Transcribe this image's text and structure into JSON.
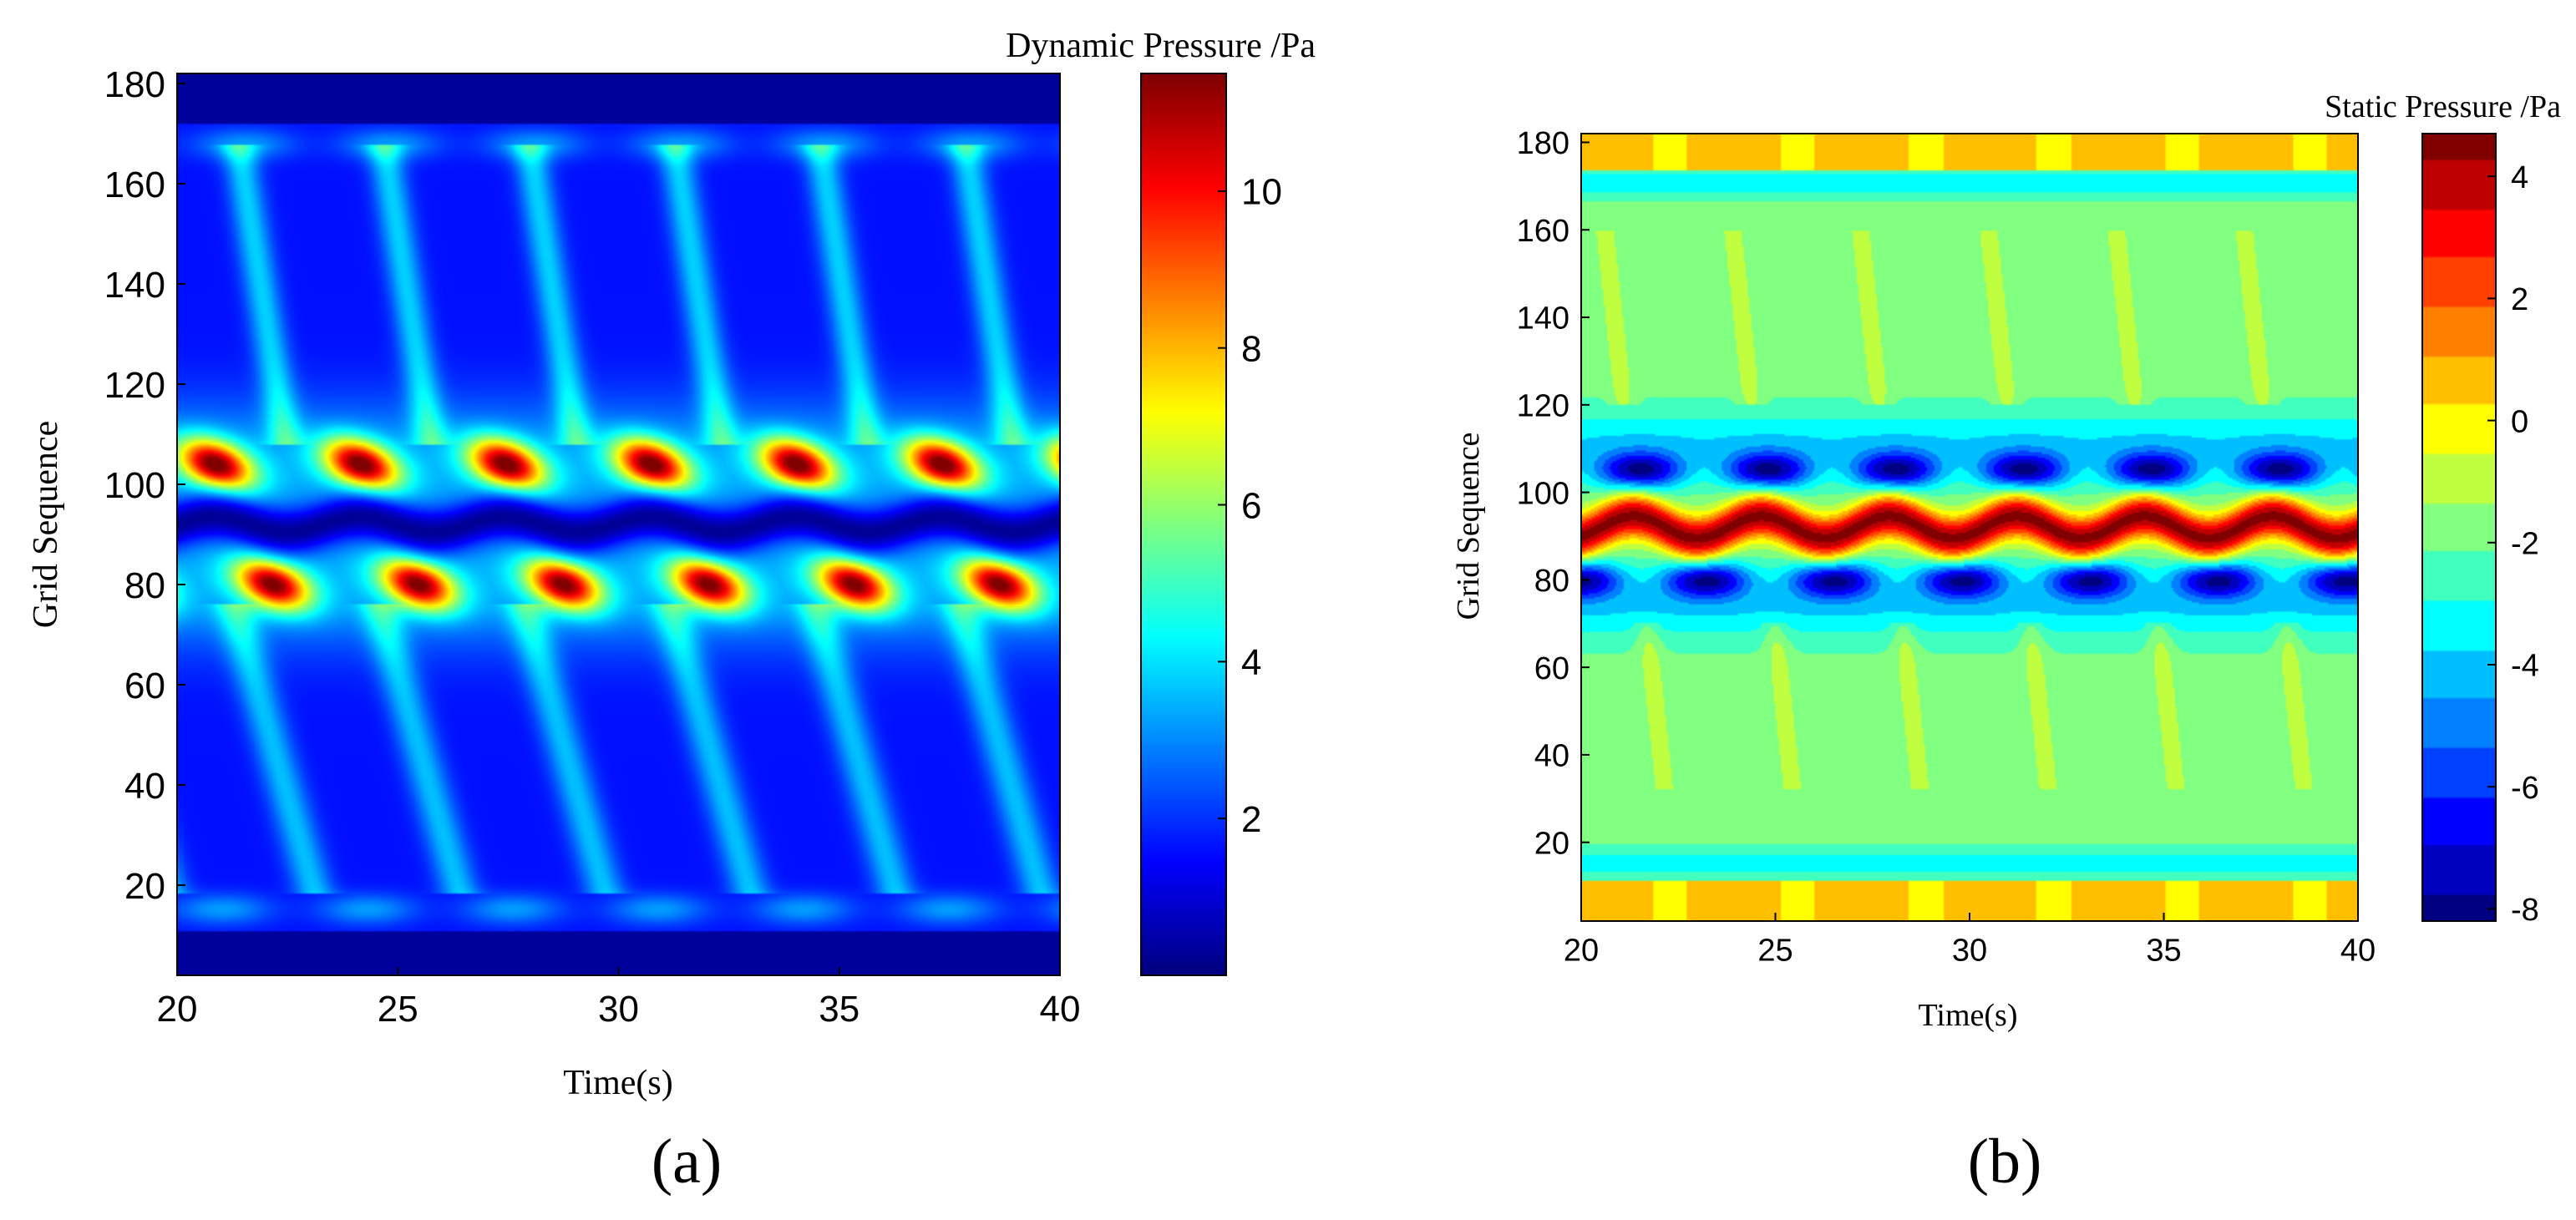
{
  "chart_data": [
    {
      "type": "heatmap",
      "panel_label": "(a)",
      "title": "",
      "xlabel": "Time(s)",
      "ylabel": "Grid Sequence",
      "colorbar_title": "Dynamic Pressure /Pa",
      "xlim": [
        20,
        40
      ],
      "ylim": [
        2,
        182
      ],
      "xticks": [
        20,
        25,
        30,
        35,
        40
      ],
      "yticks": [
        20,
        40,
        60,
        80,
        100,
        120,
        140,
        160,
        180
      ],
      "clim": [
        0,
        11.5
      ],
      "cticks": [
        2,
        4,
        6,
        8,
        10
      ],
      "grid": false,
      "features": {
        "bands": [
          {
            "name": "upper-high-pressure-row",
            "center": 104,
            "amplitude": 9.5,
            "period_s": 3.3,
            "phase_s": 22.5
          },
          {
            "name": "lower-high-pressure-row",
            "center": 80,
            "amplitude": 9.0,
            "period_s": 3.3,
            "phase_s": 20.5
          },
          {
            "name": "central-low-pressure-channel",
            "center": 92,
            "value": 0.2
          }
        ],
        "background_value": 1.6,
        "wall_rows": [
          3,
          178
        ]
      }
    },
    {
      "type": "heatmap",
      "panel_label": "(b)",
      "title": "",
      "xlabel": "Time(s)",
      "ylabel": "Grid Sequence",
      "colorbar_title": "Static Pressure /Pa",
      "xlim": [
        20,
        40
      ],
      "ylim": [
        2,
        182
      ],
      "xticks": [
        20,
        25,
        30,
        35,
        40
      ],
      "yticks": [
        20,
        40,
        60,
        80,
        100,
        120,
        140,
        160,
        180
      ],
      "clim": [
        -8.2,
        4.7
      ],
      "cticks": [
        4,
        2,
        0,
        -2,
        -4,
        -6,
        -8
      ],
      "grid": false,
      "features": {
        "bands": [
          {
            "name": "central-high-pressure-wave",
            "center": 92,
            "value": 4.0,
            "period_s": 3.3
          },
          {
            "name": "upper-low-pressure-row",
            "center": 106,
            "value": -7.5
          },
          {
            "name": "lower-low-pressure-row",
            "center": 80,
            "value": -7.5
          }
        ],
        "background_value": -2.0,
        "wall_value": 0.5
      }
    }
  ]
}
